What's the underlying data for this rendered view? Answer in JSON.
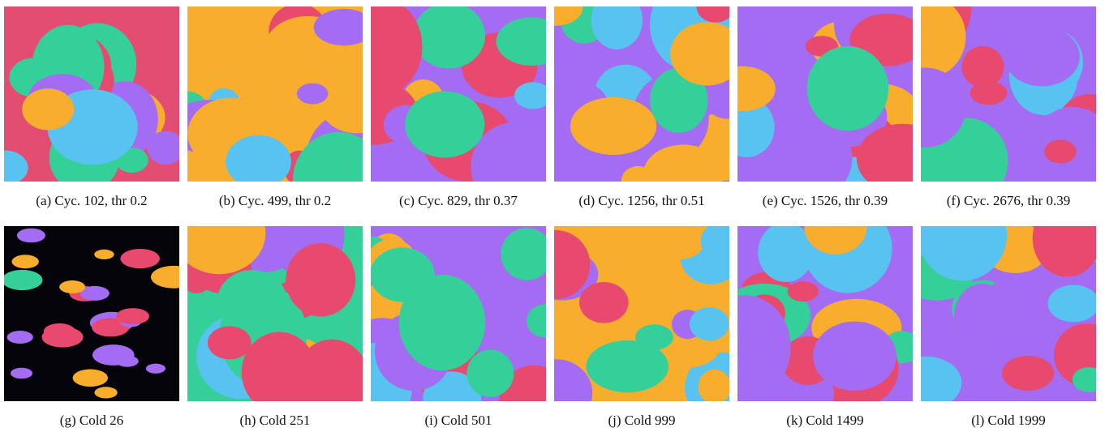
{
  "panels": [
    {
      "caption": "(a) Cyc. 102, thr 0.2"
    },
    {
      "caption": "(b) Cyc. 499, thr 0.2"
    },
    {
      "caption": "(c) Cyc. 829, thr 0.37"
    },
    {
      "caption": "(d) Cyc. 1256, thr 0.51"
    },
    {
      "caption": "(e) Cyc. 1526, thr 0.39"
    },
    {
      "caption": "(f) Cyc. 2676, thr 0.39"
    },
    {
      "caption": "(g) Cold 26"
    },
    {
      "caption": "(h) Cold 251"
    },
    {
      "caption": "(i) Cold 501"
    },
    {
      "caption": "(j) Cold 999"
    },
    {
      "caption": "(k) Cold 1499"
    },
    {
      "caption": "(l) Cold 1999"
    }
  ]
}
